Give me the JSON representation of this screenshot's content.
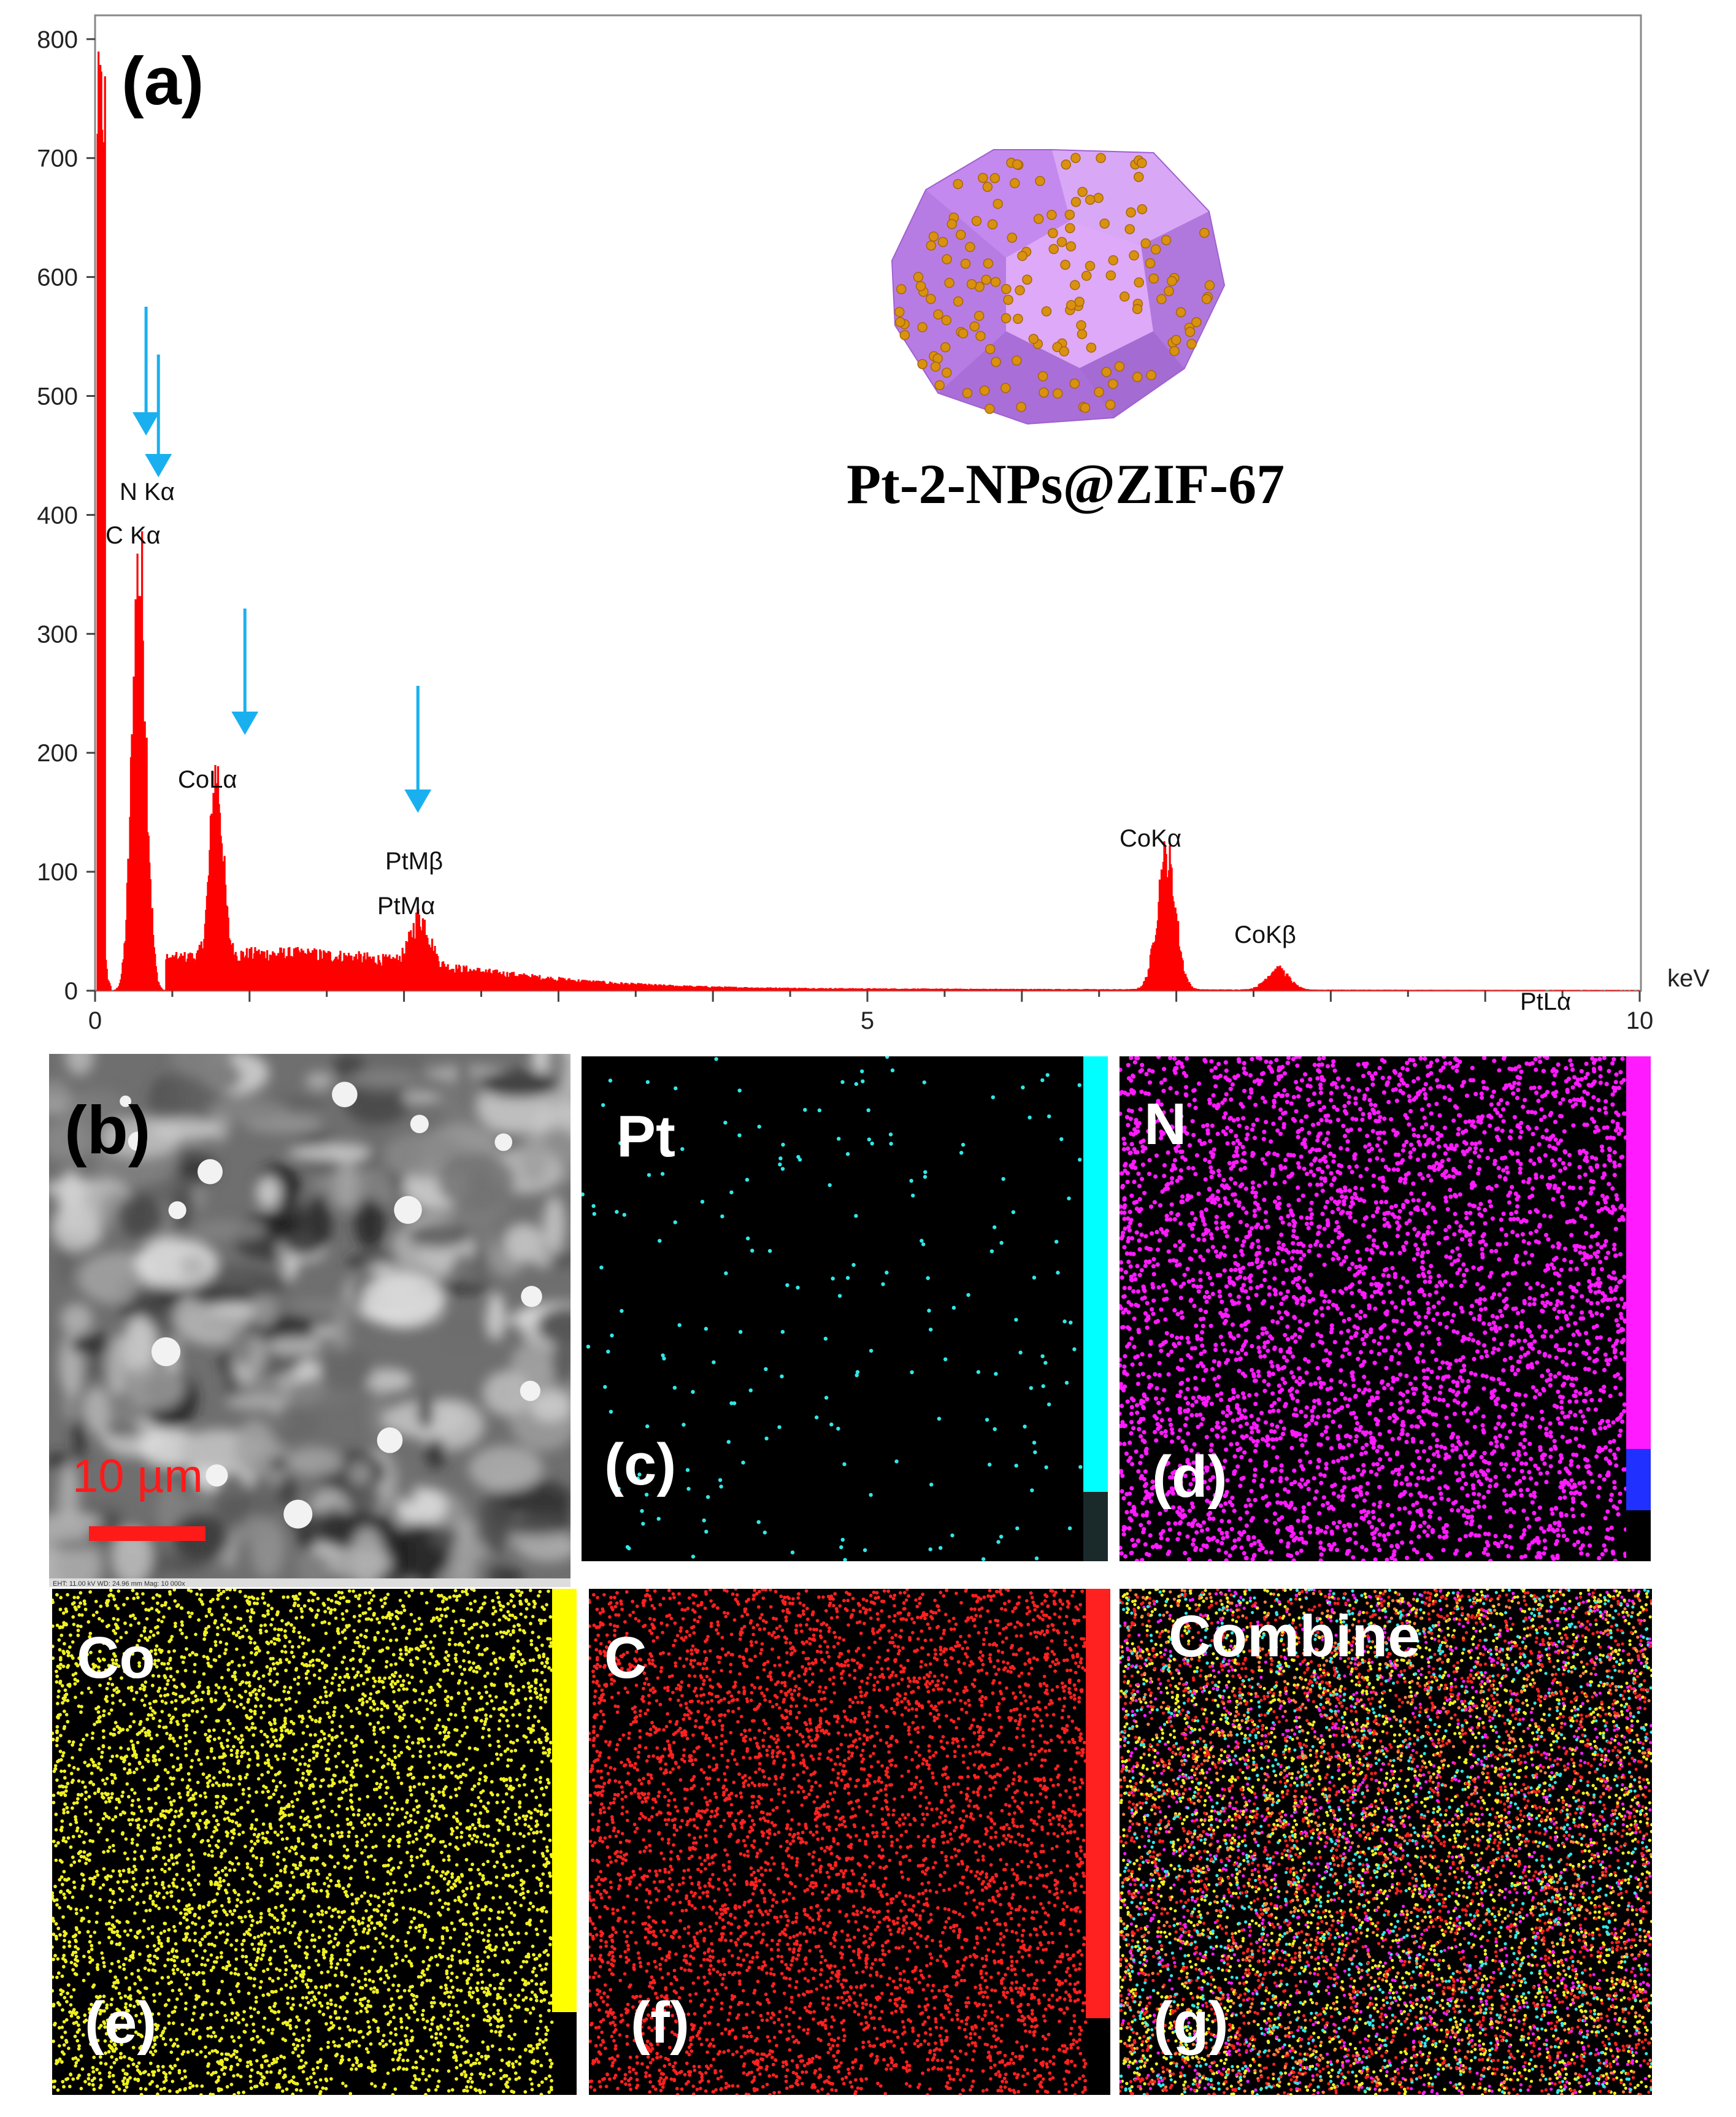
{
  "figure": {
    "panel_a_label": "(a)",
    "material_label": "Pt-2-NPs@ZIF-67",
    "x_unit": "keV",
    "panels": {
      "b": "(b)",
      "c": "(c)",
      "d": "(d)",
      "e": "(e)",
      "f": "(f)",
      "g": "(g)"
    },
    "maps": [
      {
        "id": "c",
        "element": "Pt",
        "color": "#30e8e8"
      },
      {
        "id": "d",
        "element": "N",
        "color": "#ff1aff"
      },
      {
        "id": "e",
        "element": "Co",
        "color": "#f0f020"
      },
      {
        "id": "f",
        "element": "C",
        "color": "#ff2020"
      },
      {
        "id": "g",
        "element": "Combine",
        "color": "#ffffff"
      }
    ],
    "scale_bar": "10 µm",
    "sem_footer": "EHT: 11.00 kV   WD: 24.96 mm      Mag: 10 000x"
  },
  "chart_data": {
    "type": "bar",
    "title": "",
    "xlabel": "keV",
    "ylabel": "",
    "xlim": [
      0,
      10
    ],
    "ylim": [
      0,
      820
    ],
    "x_ticks": [
      0,
      5,
      10
    ],
    "y_ticks": [
      0,
      100,
      200,
      300,
      400,
      500,
      600,
      700,
      800
    ],
    "color": "#ff0000",
    "peaks": [
      {
        "x": 0.05,
        "y": 790
      },
      {
        "x": 0.28,
        "y": 355,
        "label_lines": [
          "C Kα",
          "N Kα"
        ]
      },
      {
        "x": 0.78,
        "y": 162,
        "label_lines": [
          "CoLα"
        ]
      },
      {
        "x": 2.1,
        "y": 52,
        "label_lines": [
          "PtMα",
          "PtMβ"
        ]
      },
      {
        "x": 6.93,
        "y": 112,
        "label_lines": [
          "CoKα"
        ]
      },
      {
        "x": 7.65,
        "y": 18,
        "label_lines": [
          "CoKβ"
        ]
      },
      {
        "x": 9.44,
        "y": 3,
        "label_lines": [
          "PtLα"
        ]
      }
    ],
    "annotations": [
      {
        "text": "N Kα"
      },
      {
        "text": "C Kα"
      },
      {
        "text": "CoLα"
      },
      {
        "text": "PtMβ"
      },
      {
        "text": "PtMα"
      },
      {
        "text": "CoKα"
      },
      {
        "text": "CoKβ"
      },
      {
        "text": "PtLα"
      }
    ],
    "arrow_markers_x": [
      0.33,
      0.41,
      0.97,
      2.09
    ]
  }
}
